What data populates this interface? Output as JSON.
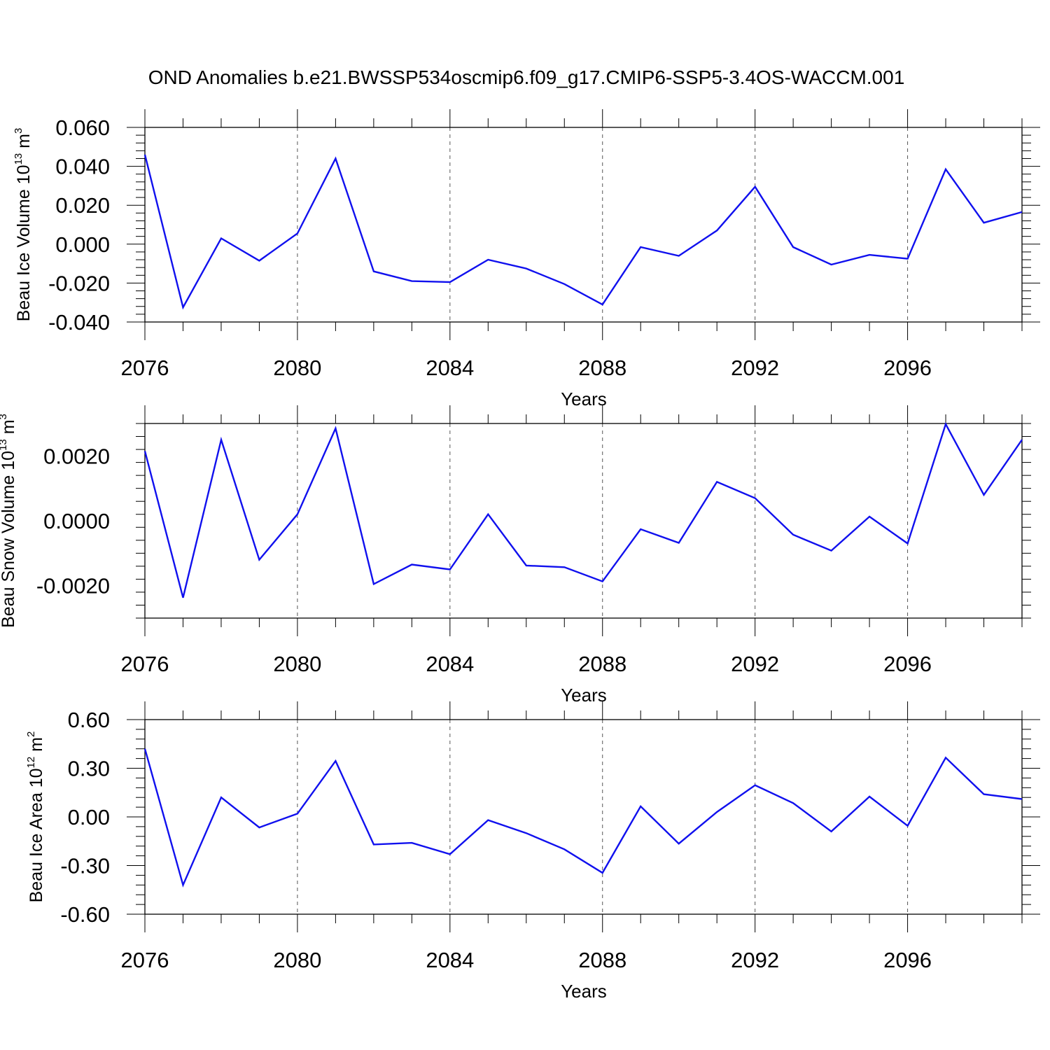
{
  "title": "OND Anomalies b.e21.BWSSP534oscmip6.f09_g17.CMIP6-SSP5-3.4OS-WACCM.001",
  "line_color": "#1010ee",
  "chart_data": [
    {
      "type": "line",
      "ylabel": {
        "text": "Beau Ice Volume 10",
        "sup": "13",
        "unit": " m",
        "unit_sup": "3"
      },
      "xlabel": "Years",
      "xlim": [
        2076,
        2099
      ],
      "ylim": [
        -0.04,
        0.06
      ],
      "yticks": [
        0.06,
        0.04,
        0.02,
        0.0,
        -0.02,
        -0.04
      ],
      "ytick_labels": [
        "0.060",
        "0.040",
        "0.020",
        "0.000",
        "-0.020",
        "-0.040"
      ],
      "xticks": [
        2076,
        2080,
        2084,
        2088,
        2092,
        2096
      ],
      "xtick_labels": [
        "2076",
        "2080",
        "2084",
        "2088",
        "2092",
        "2096"
      ],
      "x": [
        2076,
        2077,
        2078,
        2079,
        2080,
        2081,
        2082,
        2083,
        2084,
        2085,
        2086,
        2087,
        2088,
        2089,
        2090,
        2091,
        2092,
        2093,
        2094,
        2095,
        2096,
        2097,
        2098,
        2099
      ],
      "y": [
        0.046,
        -0.0325,
        0.003,
        -0.0085,
        0.0055,
        0.044,
        -0.014,
        -0.019,
        -0.0195,
        -0.008,
        -0.0125,
        -0.0205,
        -0.031,
        -0.0015,
        -0.006,
        0.007,
        0.0295,
        -0.0015,
        -0.0105,
        -0.0055,
        -0.0075,
        0.0385,
        0.011,
        0.0165
      ]
    },
    {
      "type": "line",
      "ylabel": {
        "text": "Beau Snow Volume 10",
        "sup": "13",
        "unit": " m",
        "unit_sup": "3"
      },
      "xlabel": "Years",
      "xlim": [
        2076,
        2099
      ],
      "ylim": [
        -0.003,
        0.003
      ],
      "yticks": [
        0.002,
        0.0,
        -0.002
      ],
      "ytick_labels": [
        "0.0020",
        "0.0000",
        "-0.0020"
      ],
      "xticks": [
        2076,
        2080,
        2084,
        2088,
        2092,
        2096
      ],
      "xtick_labels": [
        "2076",
        "2080",
        "2084",
        "2088",
        "2092",
        "2096"
      ],
      "x": [
        2076,
        2077,
        2078,
        2079,
        2080,
        2081,
        2082,
        2083,
        2084,
        2085,
        2086,
        2087,
        2088,
        2089,
        2090,
        2091,
        2092,
        2093,
        2094,
        2095,
        2096,
        2097,
        2098,
        2099
      ],
      "y": [
        0.00215,
        -0.00237,
        0.0025,
        -0.0012,
        0.0002,
        0.00285,
        -0.00195,
        -0.00135,
        -0.0015,
        0.0002,
        -0.00138,
        -0.00143,
        -0.00187,
        -0.00026,
        -0.00068,
        0.0012,
        0.0007,
        -0.00043,
        -0.00092,
        0.00013,
        -0.0007,
        0.00298,
        0.0008,
        0.0025
      ]
    },
    {
      "type": "line",
      "ylabel": {
        "text": "Beau Ice Area 10",
        "sup": "12",
        "unit": " m",
        "unit_sup": "2"
      },
      "xlabel": "Years",
      "xlim": [
        2076,
        2099
      ],
      "ylim": [
        -0.6,
        0.6
      ],
      "yticks": [
        0.6,
        0.3,
        0.0,
        -0.3,
        -0.6
      ],
      "ytick_labels": [
        "0.60",
        "0.30",
        "0.00",
        "-0.30",
        "-0.60"
      ],
      "xticks": [
        2076,
        2080,
        2084,
        2088,
        2092,
        2096
      ],
      "xtick_labels": [
        "2076",
        "2080",
        "2084",
        "2088",
        "2092",
        "2096"
      ],
      "x": [
        2076,
        2077,
        2078,
        2079,
        2080,
        2081,
        2082,
        2083,
        2084,
        2085,
        2086,
        2087,
        2088,
        2089,
        2090,
        2091,
        2092,
        2093,
        2094,
        2095,
        2096,
        2097,
        2098,
        2099
      ],
      "y": [
        0.42,
        -0.42,
        0.12,
        -0.065,
        0.02,
        0.345,
        -0.17,
        -0.16,
        -0.23,
        -0.02,
        -0.1,
        -0.2,
        -0.345,
        0.065,
        -0.165,
        0.03,
        0.195,
        0.085,
        -0.09,
        0.125,
        -0.055,
        0.365,
        0.14,
        0.11
      ]
    }
  ]
}
